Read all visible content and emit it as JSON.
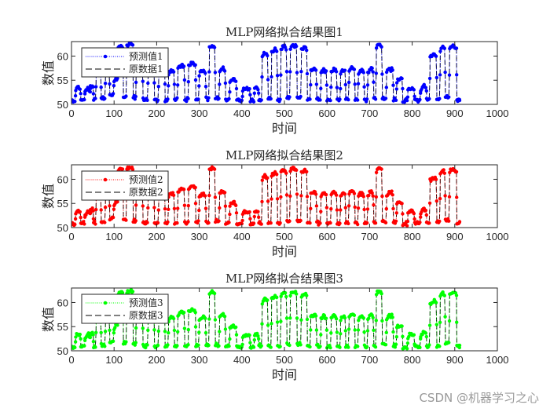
{
  "watermark": "CSDN @机器学习之心",
  "chart_data": [
    {
      "type": "line",
      "title": "MLP网络拟合结果图1",
      "xlabel": "时间",
      "ylabel": "数值",
      "xlim": [
        0,
        1000
      ],
      "ylim": [
        50,
        63
      ],
      "xticks": [
        0,
        100,
        200,
        300,
        400,
        500,
        600,
        700,
        800,
        900,
        1000
      ],
      "yticks": [
        50,
        55,
        60
      ],
      "legend_position": "northwest",
      "series": [
        {
          "name": "预测值1",
          "color": "#0000ff",
          "style": "dotted",
          "marker": "dot"
        },
        {
          "name": "原数据1",
          "color": "#000000",
          "style": "dashed",
          "marker": "none"
        }
      ]
    },
    {
      "type": "line",
      "title": "MLP网络拟合结果图2",
      "xlabel": "时间",
      "ylabel": "数值",
      "xlim": [
        0,
        1000
      ],
      "ylim": [
        50,
        63
      ],
      "xticks": [
        0,
        100,
        200,
        300,
        400,
        500,
        600,
        700,
        800,
        900,
        1000
      ],
      "yticks": [
        50,
        55,
        60
      ],
      "legend_position": "northwest",
      "series": [
        {
          "name": "预测值2",
          "color": "#ff0000",
          "style": "dotted",
          "marker": "dot"
        },
        {
          "name": "原数据2",
          "color": "#000000",
          "style": "dashed",
          "marker": "none"
        }
      ]
    },
    {
      "type": "line",
      "title": "MLP网络拟合结果图3",
      "xlabel": "时间",
      "ylabel": "数值",
      "xlim": [
        0,
        1000
      ],
      "ylim": [
        50,
        63
      ],
      "xticks": [
        0,
        100,
        200,
        300,
        400,
        500,
        600,
        700,
        800,
        900,
        1000
      ],
      "yticks": [
        50,
        55,
        60
      ],
      "legend_position": "northwest",
      "series": [
        {
          "name": "预测值3",
          "color": "#00ff00",
          "style": "dotted",
          "marker": "dot"
        },
        {
          "name": "原数据3",
          "color": "#000000",
          "style": "dashed",
          "marker": "none"
        }
      ]
    }
  ],
  "shared_series": {
    "n_points": 912,
    "description": "Approximate daily-cycle envelope read from plot: alternating low (~50.5-51) and plateau segments",
    "plateaus": [
      [
        0,
        50.8
      ],
      [
        10,
        53.2
      ],
      [
        22,
        51.0
      ],
      [
        32,
        53.0
      ],
      [
        45,
        53.5
      ],
      [
        52,
        51.0
      ],
      [
        58,
        57.0
      ],
      [
        70,
        51.2
      ],
      [
        80,
        57.0
      ],
      [
        90,
        52.0
      ],
      [
        100,
        55.0
      ],
      [
        110,
        62.0
      ],
      [
        122,
        51.5
      ],
      [
        130,
        62.3
      ],
      [
        145,
        51.5
      ],
      [
        152,
        57.5
      ],
      [
        168,
        51.0
      ],
      [
        180,
        57.0
      ],
      [
        195,
        51.0
      ],
      [
        205,
        56.8
      ],
      [
        220,
        51.0
      ],
      [
        228,
        56.7
      ],
      [
        242,
        51.0
      ],
      [
        250,
        57.8
      ],
      [
        266,
        51.0
      ],
      [
        275,
        58.2
      ],
      [
        292,
        51.0
      ],
      [
        300,
        56.6
      ],
      [
        316,
        51.2
      ],
      [
        324,
        62.0
      ],
      [
        338,
        51.3
      ],
      [
        348,
        57.2
      ],
      [
        362,
        51.0
      ],
      [
        372,
        55.0
      ],
      [
        388,
        50.8
      ],
      [
        402,
        53.1
      ],
      [
        420,
        50.7
      ],
      [
        430,
        53.3
      ],
      [
        440,
        51.0
      ],
      [
        448,
        60.3
      ],
      [
        462,
        51.0
      ],
      [
        470,
        61.0
      ],
      [
        484,
        51.0
      ],
      [
        492,
        61.6
      ],
      [
        506,
        51.5
      ],
      [
        514,
        62.0
      ],
      [
        530,
        51.5
      ],
      [
        540,
        61.6
      ],
      [
        554,
        51.0
      ],
      [
        562,
        57.0
      ],
      [
        576,
        51.0
      ],
      [
        586,
        56.8
      ],
      [
        600,
        51.0
      ],
      [
        610,
        57.0
      ],
      [
        624,
        51.0
      ],
      [
        632,
        56.8
      ],
      [
        644,
        51.0
      ],
      [
        652,
        57.3
      ],
      [
        666,
        51.0
      ],
      [
        674,
        56.8
      ],
      [
        688,
        51.0
      ],
      [
        696,
        57.0
      ],
      [
        710,
        51.0
      ],
      [
        716,
        62.0
      ],
      [
        730,
        51.2
      ],
      [
        740,
        57.0
      ],
      [
        756,
        51.0
      ],
      [
        764,
        55.0
      ],
      [
        778,
        50.8
      ],
      [
        790,
        53.2
      ],
      [
        806,
        50.8
      ],
      [
        820,
        53.5
      ],
      [
        834,
        51.0
      ],
      [
        842,
        60.0
      ],
      [
        858,
        51.0
      ],
      [
        866,
        61.5
      ],
      [
        878,
        51.5
      ],
      [
        888,
        61.8
      ],
      [
        905,
        51.0
      ],
      [
        912,
        51.0
      ]
    ]
  }
}
